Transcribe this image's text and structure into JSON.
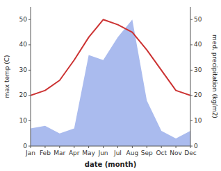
{
  "chart_data": {
    "type": "line",
    "categories": [
      "Jan",
      "Feb",
      "Mar",
      "Apr",
      "May",
      "Jun",
      "Jul",
      "Aug",
      "Sep",
      "Oct",
      "Nov",
      "Dec"
    ],
    "series": [
      {
        "type": "area",
        "color": "#aabbee",
        "axis": "y2",
        "values": [
          7,
          8,
          5,
          7,
          36,
          34,
          43,
          50,
          18,
          6,
          3,
          6
        ]
      },
      {
        "type": "line",
        "color": "#cc3333",
        "values": [
          20,
          22,
          26,
          34,
          43,
          50,
          48,
          45,
          38,
          30,
          22,
          20
        ]
      }
    ],
    "xlabel": "date (month)",
    "ylabel": "max temp (C)",
    "y2label": "med. precipitation (kg/m2)",
    "ylim": [
      0,
      55
    ],
    "yticks": [
      0,
      10,
      20,
      30,
      40,
      50
    ],
    "y2lim": [
      0,
      55
    ],
    "y2ticks": [
      0,
      10,
      20,
      30,
      40,
      50
    ],
    "grid": false
  }
}
